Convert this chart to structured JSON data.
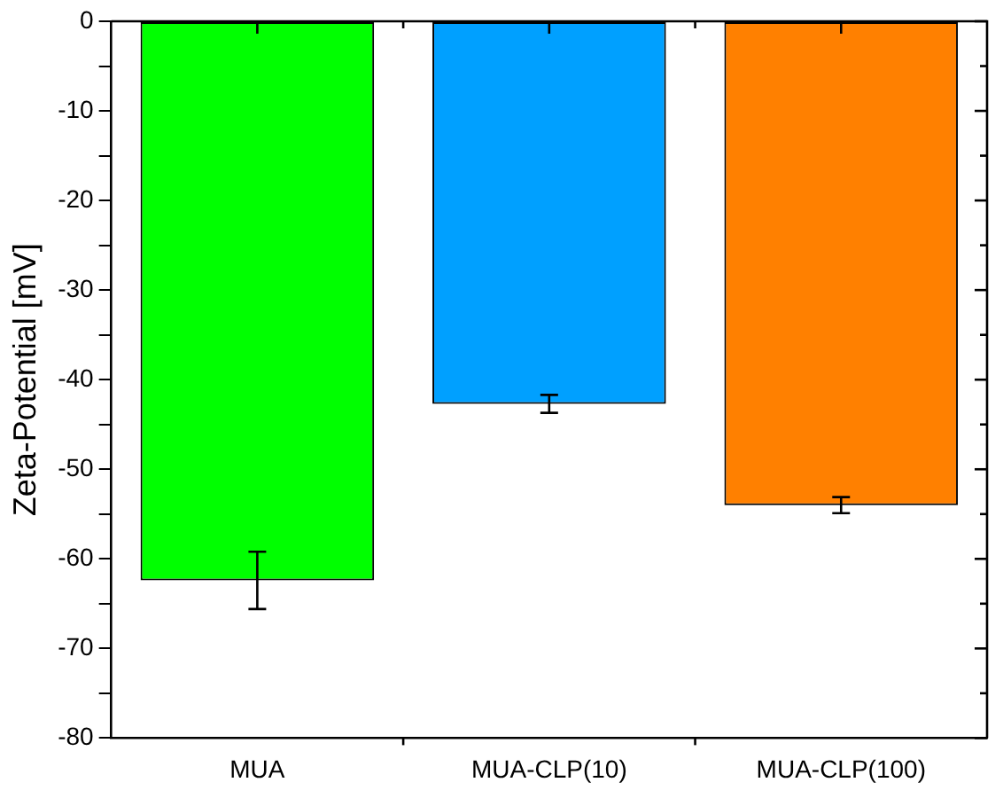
{
  "chart_data": {
    "type": "bar",
    "ylabel": "Zeta-Potential [mV]",
    "categories": [
      "MUA",
      "MUA-CLP(10)",
      "MUA-CLP(100)"
    ],
    "values": [
      -62.4,
      -42.7,
      -54.0
    ],
    "colors": [
      "#00ff00",
      "#00a0ff",
      "#ff8000"
    ],
    "errors": [
      3.2,
      1.0,
      0.9
    ],
    "ylim": [
      -80,
      0
    ],
    "yticks": [
      -80,
      {
        "value": -75,
        "label": null
      },
      -70,
      {
        "value": -65,
        "label": null
      },
      -60,
      {
        "value": -55,
        "label": null
      },
      -50,
      {
        "value": -45,
        "label": null
      },
      -40,
      {
        "value": -35,
        "label": null
      },
      -30,
      {
        "value": -25,
        "label": null
      },
      -20,
      {
        "value": -15,
        "label": null
      },
      -10,
      {
        "value": -5,
        "label": null
      },
      0
    ],
    "grid": false,
    "legend": false
  }
}
